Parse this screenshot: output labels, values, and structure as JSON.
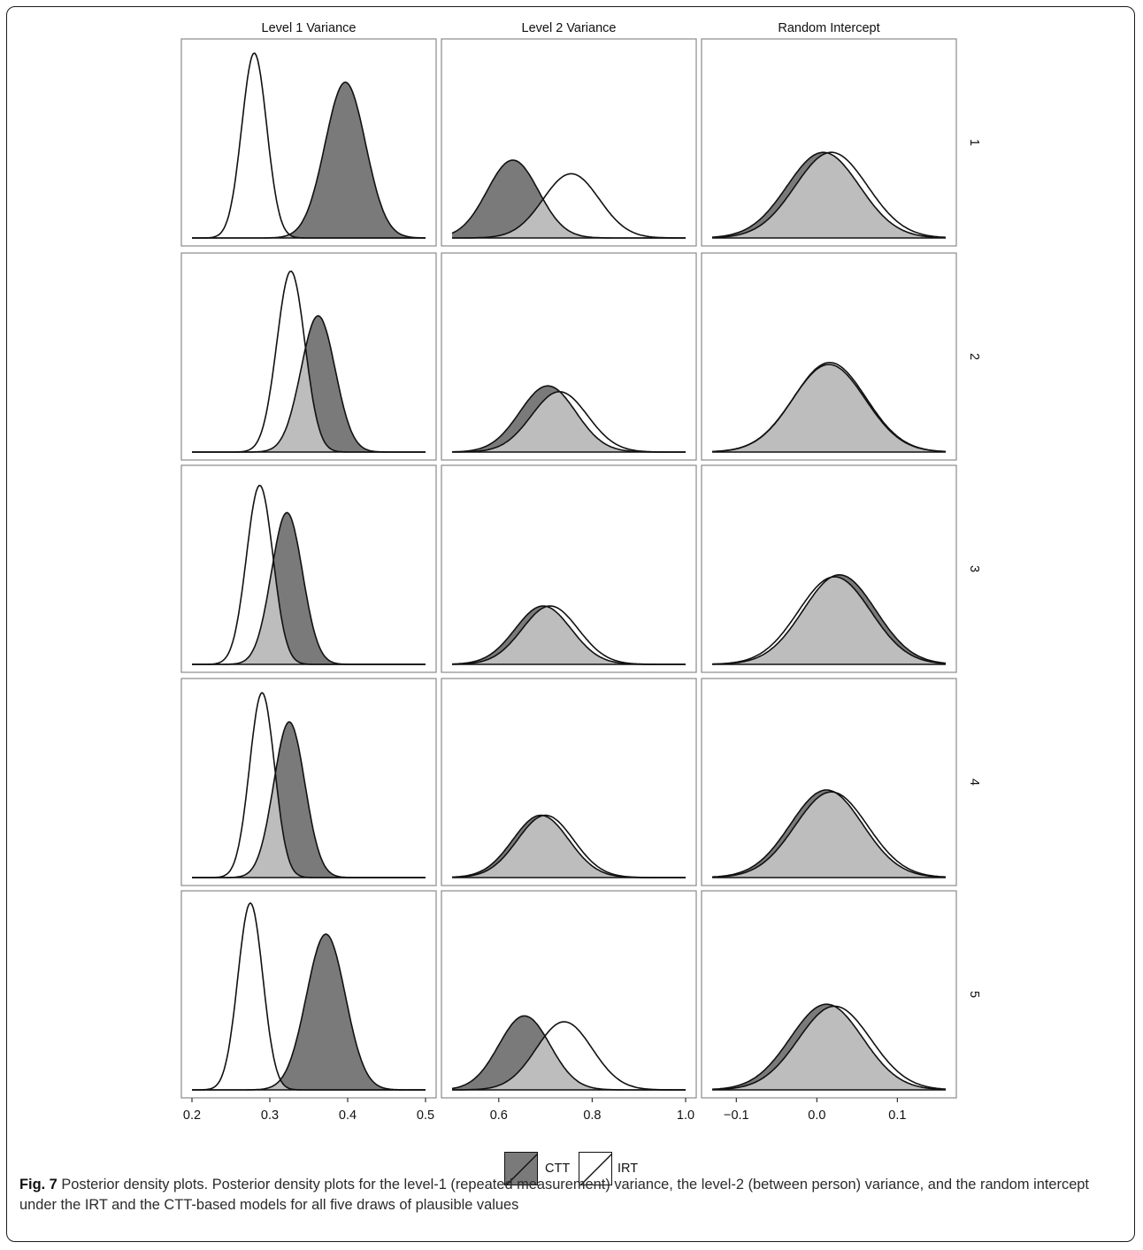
{
  "caption": {
    "label": "Fig. 7",
    "text": "Posterior density plots. Posterior density plots for the level-1 (repeated measurement) variance, the level-2 (between person) variance, and the random intercept under the IRT and the CTT-based models for all five draws of plausible values"
  },
  "legend": {
    "items": [
      "CTT",
      "IRT"
    ]
  },
  "colors": {
    "ctt_fill": "#7a7a7a",
    "irt_fill": "#ffffff",
    "overlap_fill": "#bdbdbd",
    "outline": "#111111",
    "panel_border": "#8a8a8a"
  },
  "chart_data": {
    "type": "area",
    "facet_columns": [
      "Level 1 Variance",
      "Level 2 Variance",
      "Random Intercept"
    ],
    "facet_rows": [
      "1",
      "2",
      "3",
      "4",
      "5"
    ],
    "x_axes": [
      {
        "xlim": [
          0.2,
          0.5
        ],
        "ticks": [
          "0.2",
          "0.3",
          "0.4",
          "0.5"
        ],
        "tick_values": [
          0.2,
          0.3,
          0.4,
          0.5
        ]
      },
      {
        "xlim": [
          0.5,
          1.0
        ],
        "ticks": [
          "0.6",
          "0.8",
          "1.0"
        ],
        "tick_values": [
          0.6,
          0.8,
          1.0
        ]
      },
      {
        "xlim": [
          -0.13,
          0.16
        ],
        "ticks": [
          "−0.1",
          "0.0",
          "0.1"
        ],
        "tick_values": [
          -0.1,
          0.0,
          0.1
        ]
      }
    ],
    "series": [
      {
        "name": "CTT",
        "panels": [
          [
            {
              "mean": 0.397,
              "sd": 0.026,
              "peak": 0.8
            },
            {
              "mean": 0.63,
              "sd": 0.055,
              "peak": 0.4
            },
            {
              "mean": 0.008,
              "sd": 0.045,
              "peak": 0.44
            }
          ],
          [
            {
              "mean": 0.362,
              "sd": 0.022,
              "peak": 0.7
            },
            {
              "mean": 0.705,
              "sd": 0.06,
              "peak": 0.34
            },
            {
              "mean": 0.015,
              "sd": 0.045,
              "peak": 0.45
            }
          ],
          [
            {
              "mean": 0.322,
              "sd": 0.02,
              "peak": 0.78
            },
            {
              "mean": 0.695,
              "sd": 0.06,
              "peak": 0.3
            },
            {
              "mean": 0.028,
              "sd": 0.045,
              "peak": 0.46
            }
          ],
          [
            {
              "mean": 0.325,
              "sd": 0.02,
              "peak": 0.8
            },
            {
              "mean": 0.69,
              "sd": 0.06,
              "peak": 0.32
            },
            {
              "mean": 0.012,
              "sd": 0.045,
              "peak": 0.45
            }
          ],
          [
            {
              "mean": 0.372,
              "sd": 0.025,
              "peak": 0.8
            },
            {
              "mean": 0.655,
              "sd": 0.055,
              "peak": 0.38
            },
            {
              "mean": 0.012,
              "sd": 0.045,
              "peak": 0.44
            }
          ]
        ]
      },
      {
        "name": "IRT",
        "panels": [
          [
            {
              "mean": 0.28,
              "sd": 0.016,
              "peak": 0.95
            },
            {
              "mean": 0.755,
              "sd": 0.06,
              "peak": 0.33
            },
            {
              "mean": 0.018,
              "sd": 0.045,
              "peak": 0.44
            }
          ],
          [
            {
              "mean": 0.327,
              "sd": 0.018,
              "peak": 0.93
            },
            {
              "mean": 0.73,
              "sd": 0.06,
              "peak": 0.31
            },
            {
              "mean": 0.016,
              "sd": 0.045,
              "peak": 0.46
            }
          ],
          [
            {
              "mean": 0.287,
              "sd": 0.017,
              "peak": 0.92
            },
            {
              "mean": 0.71,
              "sd": 0.06,
              "peak": 0.3
            },
            {
              "mean": 0.022,
              "sd": 0.045,
              "peak": 0.45
            }
          ],
          [
            {
              "mean": 0.29,
              "sd": 0.016,
              "peak": 0.95
            },
            {
              "mean": 0.7,
              "sd": 0.06,
              "peak": 0.32
            },
            {
              "mean": 0.018,
              "sd": 0.045,
              "peak": 0.44
            }
          ],
          [
            {
              "mean": 0.275,
              "sd": 0.016,
              "peak": 0.96
            },
            {
              "mean": 0.74,
              "sd": 0.06,
              "peak": 0.35
            },
            {
              "mean": 0.022,
              "sd": 0.045,
              "peak": 0.43
            }
          ]
        ]
      }
    ],
    "ylim": [
      0,
      1
    ],
    "grid": false,
    "legend_position": "bottom-center"
  }
}
